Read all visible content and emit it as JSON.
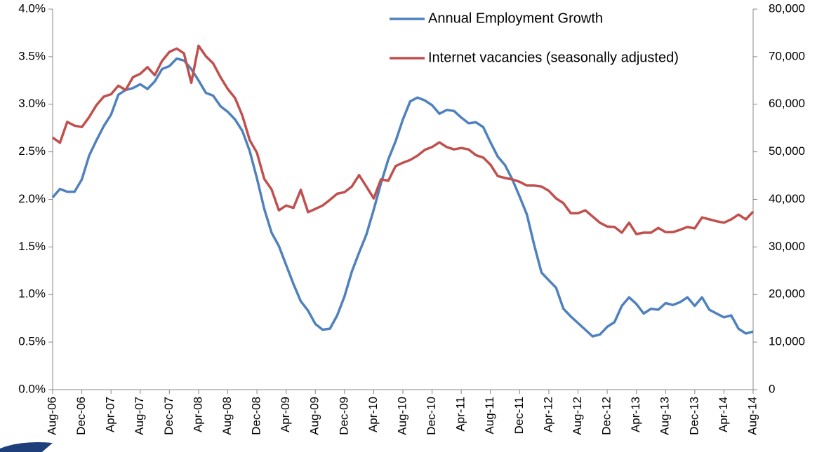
{
  "chart_data": {
    "type": "line",
    "categories": [
      "Aug-06",
      null,
      null,
      null,
      "Dec-06",
      null,
      null,
      null,
      "Apr-07",
      null,
      null,
      null,
      "Aug-07",
      null,
      null,
      null,
      "Dec-07",
      null,
      null,
      null,
      "Apr-08",
      null,
      null,
      null,
      "Aug-08",
      null,
      null,
      null,
      "Dec-08",
      null,
      null,
      null,
      "Apr-09",
      null,
      null,
      null,
      "Aug-09",
      null,
      null,
      null,
      "Dec-09",
      null,
      null,
      null,
      "Apr-10",
      null,
      null,
      null,
      "Aug-10",
      null,
      null,
      null,
      "Dec-10",
      null,
      null,
      null,
      "Apr-11",
      null,
      null,
      null,
      "Aug-11",
      null,
      null,
      null,
      "Dec-11",
      null,
      null,
      null,
      "Apr-12",
      null,
      null,
      null,
      "Aug-12",
      null,
      null,
      null,
      "Dec-12",
      null,
      null,
      null,
      "Apr-13",
      null,
      null,
      null,
      "Aug-13",
      null,
      null,
      null,
      "Dec-13",
      null,
      null,
      null,
      "Apr-14",
      null,
      null,
      null,
      "Aug-14"
    ],
    "series": [
      {
        "name": "Annual Employment Growth",
        "color": "#4f81bd",
        "values": [
          2.02,
          2.11,
          2.08,
          2.08,
          2.21,
          2.46,
          2.62,
          2.77,
          2.89,
          3.1,
          3.15,
          3.17,
          3.21,
          3.16,
          3.24,
          3.37,
          3.4,
          3.48,
          3.46,
          3.37,
          3.25,
          3.12,
          3.09,
          2.98,
          2.92,
          2.84,
          2.72,
          2.51,
          2.22,
          1.9,
          1.65,
          1.51,
          1.31,
          1.11,
          0.93,
          0.83,
          0.69,
          0.63,
          0.64,
          0.78,
          0.98,
          1.24,
          1.44,
          1.63,
          1.89,
          2.17,
          2.42,
          2.61,
          2.84,
          3.03,
          3.07,
          3.04,
          2.99,
          2.9,
          2.94,
          2.93,
          2.86,
          2.8,
          2.81,
          2.76,
          2.6,
          2.45,
          2.36,
          2.21,
          2.03,
          1.84,
          1.52,
          1.23,
          1.15,
          1.07,
          0.85,
          0.77,
          0.7,
          0.63,
          0.56,
          0.58,
          0.66,
          0.71,
          0.88,
          0.97,
          0.9,
          0.8,
          0.85,
          0.84,
          0.91,
          0.89,
          0.92,
          0.97,
          0.88,
          0.97,
          0.84,
          0.8,
          0.76,
          0.78,
          0.64,
          0.59,
          0.61
        ]
      },
      {
        "name": "Internet vacancies (seasonally adjusted)",
        "color": "#c0504d",
        "axis": "y2",
        "values": [
          53000,
          51900,
          56300,
          55500,
          55200,
          57300,
          59800,
          61600,
          62100,
          63900,
          63000,
          65700,
          66400,
          67800,
          66100,
          69100,
          71000,
          71700,
          70700,
          64500,
          72300,
          70100,
          68600,
          65700,
          63200,
          61300,
          57600,
          52500,
          49800,
          44300,
          42100,
          37700,
          38700,
          38200,
          42000,
          37300,
          38000,
          38700,
          39900,
          41200,
          41500,
          42700,
          45100,
          42700,
          40200,
          44200,
          43900,
          47000,
          47700,
          48300,
          49200,
          50400,
          51000,
          52000,
          51000,
          50500,
          50800,
          50500,
          49300,
          48800,
          47300,
          44900,
          44500,
          44200,
          43700,
          42900,
          42900,
          42700,
          41800,
          40200,
          39200,
          37100,
          37100,
          37700,
          36400,
          35100,
          34300,
          34200,
          33000,
          35100,
          32700,
          33000,
          33000,
          34000,
          33100,
          33100,
          33600,
          34200,
          33900,
          36200,
          35800,
          35400,
          35100,
          35800,
          36800,
          35800,
          37400
        ]
      }
    ],
    "ylim": [
      0,
      4.0
    ],
    "yticks": [
      {
        "value": 0,
        "label": "0.0%"
      },
      {
        "value": 0.5,
        "label": "0.5%"
      },
      {
        "value": 1.0,
        "label": "1.0%"
      },
      {
        "value": 1.5,
        "label": "1.5%"
      },
      {
        "value": 2.0,
        "label": "2.0%"
      },
      {
        "value": 2.5,
        "label": "2.5%"
      },
      {
        "value": 3.0,
        "label": "3.0%"
      },
      {
        "value": 3.5,
        "label": "3.5%"
      },
      {
        "value": 4.0,
        "label": "4.0%"
      }
    ],
    "y2lim": [
      0,
      80000
    ],
    "y2ticks": [
      0,
      {
        "value": 10000,
        "label": "10,000"
      },
      {
        "value": 20000,
        "label": "20,000"
      },
      {
        "value": 30000,
        "label": "30,000"
      },
      {
        "value": 40000,
        "label": "40,000"
      },
      {
        "value": 50000,
        "label": "50,000"
      },
      {
        "value": 60000,
        "label": "60,000"
      },
      {
        "value": 70000,
        "label": "70,000"
      },
      {
        "value": 80000,
        "label": "80,000"
      }
    ],
    "grid": false,
    "legend": "top-right"
  }
}
